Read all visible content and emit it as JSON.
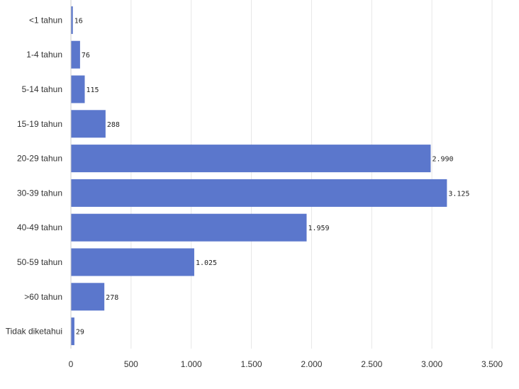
{
  "chart_data": {
    "type": "bar",
    "orientation": "horizontal",
    "categories": [
      "<1 tahun",
      "1-4 tahun",
      "5-14 tahun",
      "15-19 tahun",
      "20-29 tahun",
      "30-39 tahun",
      "40-49 tahun",
      "50-59 tahun",
      ">60 tahun",
      "Tidak diketahui"
    ],
    "values": [
      16,
      76,
      115,
      288,
      2990,
      3125,
      1959,
      1025,
      278,
      29
    ],
    "value_labels": [
      "16",
      "76",
      "115",
      "288",
      "2.990",
      "3.125",
      "1.959",
      "1.025",
      "278",
      "29"
    ],
    "xlim": [
      0,
      3500
    ],
    "x_ticks": [
      0,
      500,
      1000,
      1500,
      2000,
      2500,
      3000,
      3500
    ],
    "x_tick_labels": [
      "0",
      "500",
      "1.000",
      "1.500",
      "2.000",
      "2.500",
      "3.000",
      "3.500"
    ],
    "title": "",
    "xlabel": "",
    "ylabel": "",
    "grid": "vertical",
    "legend": "none",
    "bar_color": "#5b77cc",
    "grid_color": "#e6e6e6"
  }
}
